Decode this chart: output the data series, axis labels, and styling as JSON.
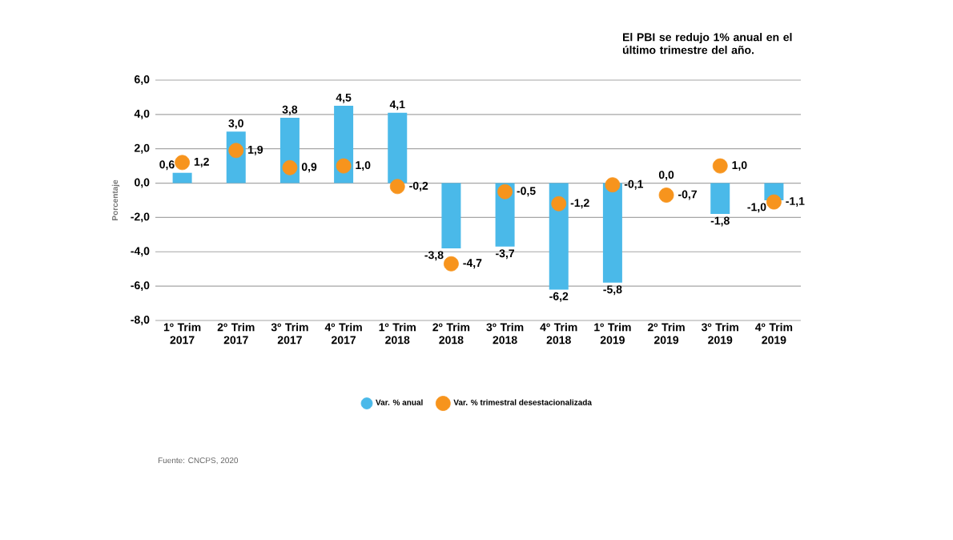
{
  "chart_data": {
    "type": "bar",
    "subtitle": "El PBI se redujo 1% anual en el último trimestre del año.",
    "ylabel": "Porcentaje",
    "categories": [
      "1º Trim 2017",
      "2º Trim 2017",
      "3º Trim 2017",
      "4º Trim 2017",
      "1º Trim 2018",
      "2º Trim 2018",
      "3º Trim 2018",
      "4º Trim 2018",
      "1º Trim 2019",
      "2º Trim 2019",
      "3º Trim 2019",
      "4º Trim 2019"
    ],
    "series": [
      {
        "name": "Var. % anual",
        "color": "#4ab9e9",
        "values": [
          0.6,
          3.0,
          3.8,
          4.5,
          4.1,
          -3.8,
          -3.7,
          -6.2,
          -5.8,
          0.0,
          -1.8,
          -1.0
        ],
        "value_labels": [
          "0,6",
          "3,0",
          "3,8",
          "4,5",
          "4,1",
          "-3,8",
          "-3,7",
          "-6,2",
          "-5,8",
          "0,0",
          "-1,8",
          "-1,0"
        ]
      },
      {
        "name": "Var. % trimestral desestacionalizada",
        "type": "scatter",
        "color": "#f7941d",
        "values": [
          1.2,
          1.9,
          0.9,
          1.0,
          -0.2,
          -4.7,
          -0.5,
          -1.2,
          -0.1,
          -0.7,
          1.0,
          -1.1
        ],
        "value_labels": [
          "1,2",
          "1,9",
          "0,9",
          "1,0",
          "-0,2",
          "-4,7",
          "-0,5",
          "-1,2",
          "-0,1",
          "-0,7",
          "1,0",
          "-1,1"
        ]
      }
    ],
    "ylim": [
      -8,
      6
    ],
    "yticks": [
      {
        "value": -8,
        "label": "-8,0"
      },
      {
        "value": -6,
        "label": "-6,0"
      },
      {
        "value": -4,
        "label": "-4,0"
      },
      {
        "value": -2,
        "label": "-2,0"
      },
      {
        "value": 0,
        "label": "0,0"
      },
      {
        "value": 2,
        "label": "2,0"
      },
      {
        "value": 4,
        "label": "4,0"
      },
      {
        "value": 6,
        "label": "6,0"
      }
    ],
    "grid": "y",
    "marker": "circle",
    "legend": "bottom",
    "annotations": [
      "Fuente: CNCPS, 2020"
    ]
  }
}
